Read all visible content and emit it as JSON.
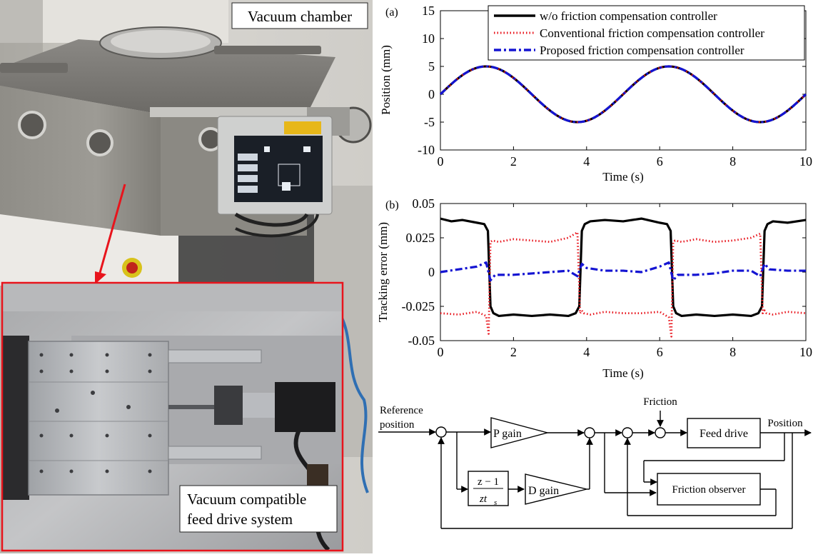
{
  "photo": {
    "chamber_label": "Vacuum chamber",
    "inset_label_line1": "Vacuum compatible",
    "inset_label_line2": "feed drive system"
  },
  "colors": {
    "series_without": "#000000",
    "series_conventional": "#e8141c",
    "series_proposed": "#1414d2",
    "callout_arrow": "#e8141c"
  },
  "chart_data": [
    {
      "type": "line",
      "panel": "(a)",
      "xlabel": "Time (s)",
      "ylabel": "Position (mm)",
      "xlim": [
        0,
        10
      ],
      "ylim": [
        -10,
        15
      ],
      "xticks": [
        0,
        2,
        4,
        6,
        8,
        10
      ],
      "yticks": [
        -10,
        -5,
        0,
        5,
        10,
        15
      ],
      "grid": false,
      "legend_position": "top-right",
      "signal": "5·sin(2π·t/5)",
      "x": [
        0,
        0.5,
        1.0,
        1.25,
        1.5,
        2.0,
        2.5,
        3.0,
        3.5,
        3.75,
        4.0,
        4.5,
        5.0,
        5.5,
        6.0,
        6.25,
        6.5,
        7.0,
        7.5,
        8.0,
        8.5,
        8.75,
        9.0,
        9.5,
        10.0
      ],
      "series": [
        {
          "name": "w/o friction compensation controller",
          "style": "solid",
          "y": [
            0,
            2.94,
            4.76,
            5.0,
            4.76,
            2.94,
            0,
            -2.94,
            -4.76,
            -5.0,
            -4.76,
            -2.94,
            0,
            2.94,
            4.76,
            5.0,
            4.76,
            2.94,
            0,
            -2.94,
            -4.76,
            -5.0,
            -4.76,
            -2.94,
            0
          ]
        },
        {
          "name": "Conventional friction compensation controller",
          "style": "dotted",
          "y": [
            0,
            2.94,
            4.76,
            5.0,
            4.76,
            2.94,
            0,
            -2.94,
            -4.76,
            -5.0,
            -4.76,
            -2.94,
            0,
            2.94,
            4.76,
            5.0,
            4.76,
            2.94,
            0,
            -2.94,
            -4.76,
            -5.0,
            -4.76,
            -2.94,
            0
          ]
        },
        {
          "name": "Proposed friction compensation controller",
          "style": "dashdot",
          "y": [
            0,
            2.94,
            4.76,
            5.0,
            4.76,
            2.94,
            0,
            -2.94,
            -4.76,
            -5.0,
            -4.76,
            -2.94,
            0,
            2.94,
            4.76,
            5.0,
            4.76,
            2.94,
            0,
            -2.94,
            -4.76,
            -5.0,
            -4.76,
            -2.94,
            0
          ]
        }
      ]
    },
    {
      "type": "line",
      "panel": "(b)",
      "xlabel": "Time (s)",
      "ylabel": "Tracking error (mm)",
      "xlim": [
        0,
        10
      ],
      "ylim": [
        -0.05,
        0.05
      ],
      "xticks": [
        0,
        2,
        4,
        6,
        8,
        10
      ],
      "yticks": [
        -0.05,
        -0.025,
        0,
        0.025,
        0.05
      ],
      "ytick_labels": [
        "-0.05",
        "-0.025",
        "0",
        "0.025",
        "0.05"
      ],
      "grid": false,
      "series": [
        {
          "name": "w/o friction compensation controller",
          "style": "solid",
          "x": [
            0,
            0.3,
            0.6,
            1.0,
            1.2,
            1.3,
            1.37,
            1.45,
            1.6,
            2.0,
            2.5,
            3.0,
            3.5,
            3.7,
            3.8,
            3.87,
            3.95,
            4.1,
            4.5,
            5.0,
            5.5,
            6.0,
            6.2,
            6.3,
            6.37,
            6.45,
            6.6,
            7.0,
            7.5,
            8.0,
            8.5,
            8.7,
            8.8,
            8.87,
            8.95,
            9.1,
            9.5,
            10.0
          ],
          "y": [
            0.039,
            0.037,
            0.038,
            0.036,
            0.035,
            0.03,
            -0.025,
            -0.03,
            -0.032,
            -0.031,
            -0.032,
            -0.031,
            -0.032,
            -0.03,
            -0.025,
            0.03,
            0.035,
            0.037,
            0.038,
            0.037,
            0.039,
            0.036,
            0.035,
            0.03,
            -0.025,
            -0.03,
            -0.032,
            -0.031,
            -0.032,
            -0.031,
            -0.032,
            -0.03,
            -0.025,
            0.03,
            0.035,
            0.037,
            0.036,
            0.038
          ]
        },
        {
          "name": "Conventional friction compensation controller",
          "style": "dotted",
          "x": [
            0,
            0.5,
            1.0,
            1.25,
            1.32,
            1.37,
            1.42,
            1.6,
            2.0,
            2.5,
            3.0,
            3.5,
            3.75,
            3.82,
            3.87,
            3.92,
            4.1,
            4.5,
            5.0,
            5.5,
            6.0,
            6.25,
            6.32,
            6.37,
            6.42,
            6.6,
            7.0,
            7.5,
            8.0,
            8.5,
            8.75,
            8.82,
            8.87,
            8.92,
            9.1,
            9.5,
            10.0
          ],
          "y": [
            -0.03,
            -0.031,
            -0.029,
            -0.032,
            -0.045,
            0.022,
            0.023,
            0.022,
            0.024,
            0.023,
            0.022,
            0.025,
            0.029,
            -0.03,
            -0.028,
            -0.03,
            -0.031,
            -0.029,
            -0.03,
            -0.03,
            -0.029,
            -0.033,
            -0.047,
            0.022,
            0.023,
            0.022,
            0.024,
            0.022,
            0.023,
            0.025,
            0.028,
            -0.03,
            -0.028,
            -0.03,
            -0.031,
            -0.029,
            -0.03
          ]
        },
        {
          "name": "Proposed friction compensation controller",
          "style": "dashdot",
          "x": [
            0,
            0.5,
            1.0,
            1.25,
            1.37,
            1.5,
            2.0,
            2.5,
            3.0,
            3.5,
            3.75,
            3.87,
            4.0,
            4.5,
            5.0,
            5.5,
            6.0,
            6.25,
            6.37,
            6.5,
            7.0,
            7.5,
            8.0,
            8.5,
            8.75,
            8.87,
            9.0,
            9.5,
            10.0
          ],
          "y": [
            0.0,
            0.002,
            0.004,
            0.007,
            -0.006,
            -0.002,
            -0.002,
            -0.001,
            0.0,
            0.001,
            -0.003,
            0.006,
            0.003,
            0.001,
            0.001,
            0.0,
            0.004,
            0.007,
            -0.006,
            -0.002,
            -0.002,
            -0.001,
            0.001,
            0.001,
            -0.003,
            0.006,
            0.002,
            0.001,
            0.001
          ]
        }
      ]
    }
  ],
  "diagram": {
    "reference_line1": "Reference",
    "reference_line2": "position",
    "p_gain": "P gain",
    "d_gain": "D gain",
    "tf_numerator": "z − 1",
    "tf_denominator_base": "zt",
    "tf_denominator_sub": "s",
    "friction": "Friction",
    "feed_drive": "Feed drive",
    "position": "Position",
    "friction_observer": "Friction observer"
  }
}
